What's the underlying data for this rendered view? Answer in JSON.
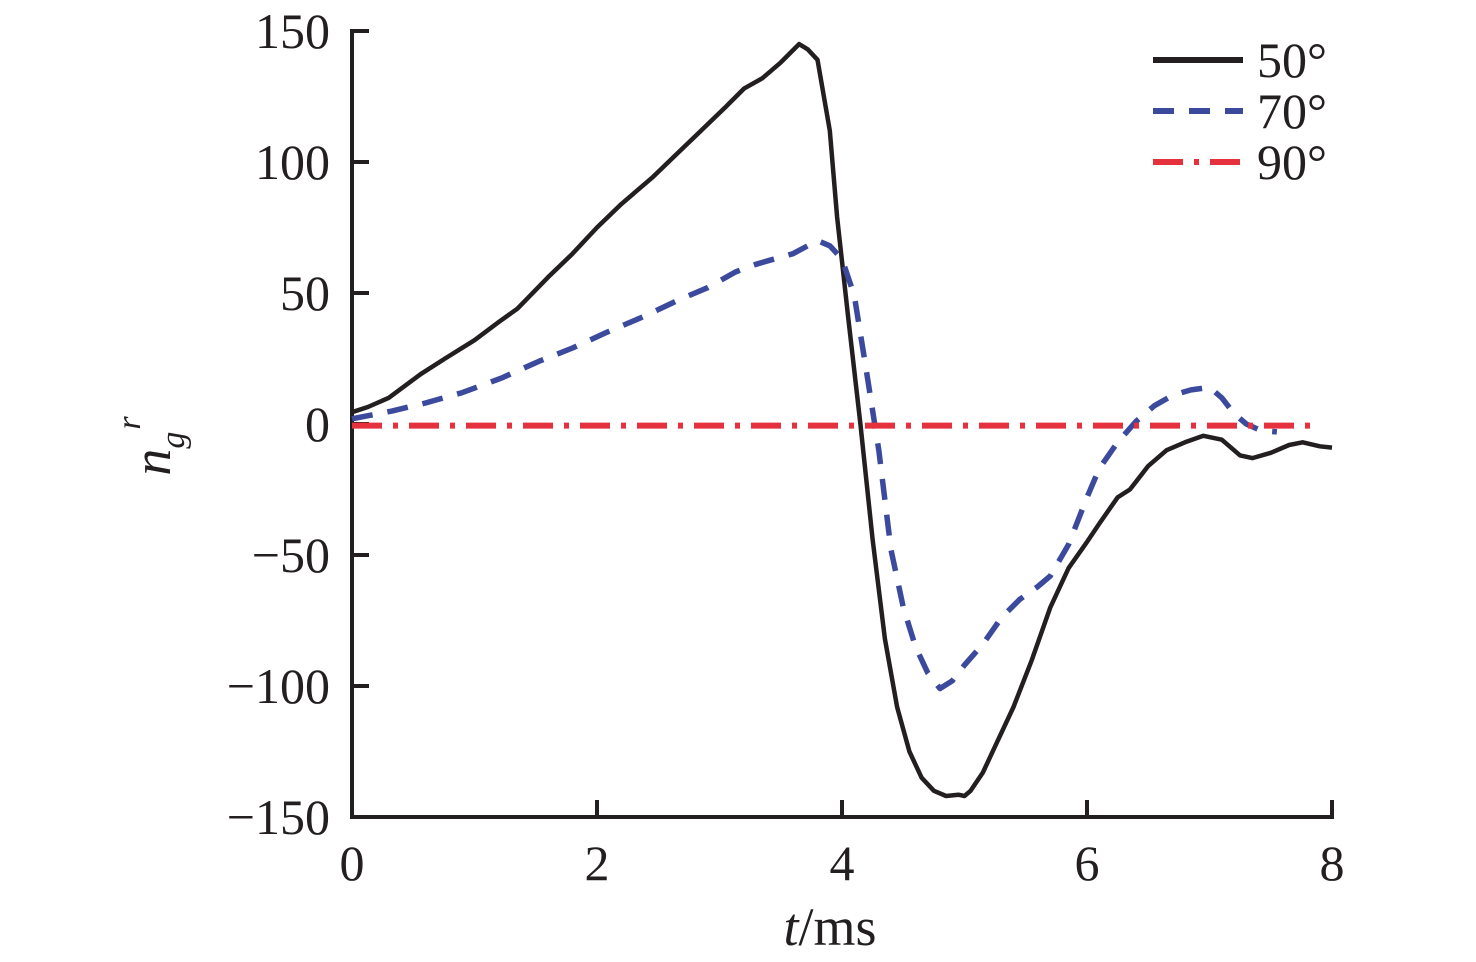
{
  "figure": {
    "background": "#ffffff",
    "axis_color": "#231f20"
  },
  "axes": {
    "xlabel": {
      "italic": "t",
      "rest": "/ms"
    },
    "ylabel": {
      "base": "n",
      "sub": "g",
      "sup": "r"
    },
    "xticks": {
      "values": [
        0,
        2,
        4,
        6,
        8
      ],
      "labels": [
        "0",
        "2",
        "4",
        "6",
        "8"
      ]
    },
    "yticks": {
      "values": [
        150,
        100,
        50,
        0,
        -50,
        -100,
        -150
      ],
      "labels": [
        "150",
        "100",
        "50",
        "0",
        "−50",
        "−100",
        "−150"
      ]
    }
  },
  "legend": {
    "position": "upper right",
    "entries": [
      {
        "label": "50°",
        "color": "#231f20",
        "style": "solid"
      },
      {
        "label": "70°",
        "color": "#3b4a9d",
        "style": "dashed"
      },
      {
        "label": "90°",
        "color": "#e5303e",
        "style": "dashdot"
      }
    ]
  },
  "chart_data": {
    "type": "line",
    "title": "",
    "xlabel": "t/ms",
    "ylabel": "n_g^r",
    "xlim": [
      0,
      8
    ],
    "ylim": [
      -150,
      150
    ],
    "grid": false,
    "legend_position": "upper right",
    "series": [
      {
        "name": "50°",
        "color": "#231f20",
        "line_style": "solid",
        "line_width": 4.5,
        "points": [
          [
            0,
            4.5
          ],
          [
            0.13,
            6.5
          ],
          [
            0.3,
            10
          ],
          [
            0.56,
            19
          ],
          [
            0.76,
            25
          ],
          [
            1.0,
            32
          ],
          [
            1.2,
            39
          ],
          [
            1.35,
            44
          ],
          [
            1.6,
            56
          ],
          [
            1.8,
            65
          ],
          [
            2.0,
            75
          ],
          [
            2.2,
            84
          ],
          [
            2.45,
            94
          ],
          [
            2.65,
            103
          ],
          [
            2.85,
            112
          ],
          [
            3.05,
            121
          ],
          [
            3.2,
            128
          ],
          [
            3.35,
            132
          ],
          [
            3.5,
            138
          ],
          [
            3.65,
            145
          ],
          [
            3.72,
            143
          ],
          [
            3.8,
            139
          ],
          [
            3.9,
            112
          ],
          [
            3.96,
            79
          ],
          [
            4.05,
            41
          ],
          [
            4.15,
            0
          ],
          [
            4.25,
            -44
          ],
          [
            4.35,
            -82
          ],
          [
            4.45,
            -108
          ],
          [
            4.55,
            -125
          ],
          [
            4.65,
            -135
          ],
          [
            4.75,
            -140
          ],
          [
            4.85,
            -142
          ],
          [
            4.95,
            -141.5
          ],
          [
            5.0,
            -142
          ],
          [
            5.05,
            -140
          ],
          [
            5.15,
            -133
          ],
          [
            5.25,
            -123
          ],
          [
            5.4,
            -108
          ],
          [
            5.55,
            -90
          ],
          [
            5.7,
            -70
          ],
          [
            5.85,
            -55
          ],
          [
            6.0,
            -45
          ],
          [
            6.1,
            -38
          ],
          [
            6.25,
            -28
          ],
          [
            6.35,
            -25
          ],
          [
            6.5,
            -16
          ],
          [
            6.65,
            -10
          ],
          [
            6.8,
            -7
          ],
          [
            6.95,
            -4.5
          ],
          [
            7.1,
            -6
          ],
          [
            7.25,
            -12
          ],
          [
            7.35,
            -13
          ],
          [
            7.5,
            -11
          ],
          [
            7.65,
            -8
          ],
          [
            7.76,
            -7
          ],
          [
            7.9,
            -8.5
          ],
          [
            8.0,
            -9
          ]
        ]
      },
      {
        "name": "70°",
        "color": "#3b4a9d",
        "line_style": "dashed",
        "line_width": 5.5,
        "points": [
          [
            0,
            2
          ],
          [
            0.33,
            5
          ],
          [
            0.6,
            8
          ],
          [
            0.9,
            12
          ],
          [
            1.22,
            17.5
          ],
          [
            1.53,
            24
          ],
          [
            1.8,
            29
          ],
          [
            2.08,
            35
          ],
          [
            2.38,
            41
          ],
          [
            2.65,
            47
          ],
          [
            2.9,
            52
          ],
          [
            3.13,
            58
          ],
          [
            3.3,
            61
          ],
          [
            3.45,
            63
          ],
          [
            3.6,
            65
          ],
          [
            3.72,
            68
          ],
          [
            3.8,
            70
          ],
          [
            3.9,
            68
          ],
          [
            4.0,
            63
          ],
          [
            4.1,
            49
          ],
          [
            4.2,
            20
          ],
          [
            4.3,
            -10
          ],
          [
            4.4,
            -48
          ],
          [
            4.5,
            -70
          ],
          [
            4.6,
            -85
          ],
          [
            4.7,
            -95
          ],
          [
            4.8,
            -101
          ],
          [
            4.9,
            -98
          ],
          [
            5.0,
            -92
          ],
          [
            5.15,
            -84
          ],
          [
            5.3,
            -74
          ],
          [
            5.45,
            -67
          ],
          [
            5.6,
            -62
          ],
          [
            5.7,
            -58
          ],
          [
            5.85,
            -46
          ],
          [
            6.0,
            -28
          ],
          [
            6.1,
            -17
          ],
          [
            6.25,
            -7
          ],
          [
            6.4,
            1
          ],
          [
            6.55,
            7
          ],
          [
            6.7,
            11
          ],
          [
            6.85,
            13
          ],
          [
            7.0,
            14
          ],
          [
            7.1,
            10
          ],
          [
            7.2,
            4
          ],
          [
            7.3,
            0
          ],
          [
            7.42,
            -2.5
          ],
          [
            7.55,
            -3
          ]
        ]
      },
      {
        "name": "90°",
        "color": "#e5303e",
        "line_style": "dashdot",
        "line_width": 6,
        "points": [
          [
            0,
            -0.6
          ],
          [
            2,
            -0.6
          ],
          [
            4,
            -0.6
          ],
          [
            6,
            -0.6
          ],
          [
            7.9,
            -0.6
          ]
        ]
      }
    ]
  }
}
